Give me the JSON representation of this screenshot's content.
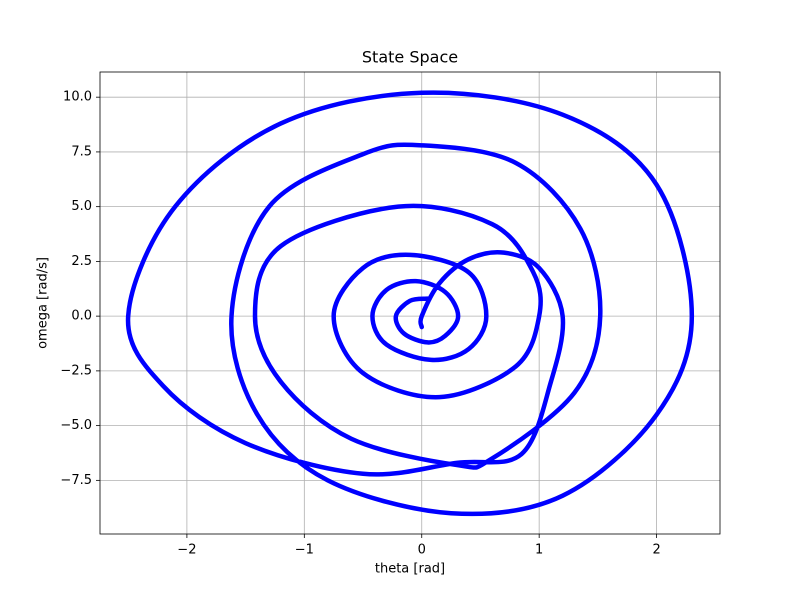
{
  "chart_data": {
    "type": "line",
    "title": "State Space",
    "x_label": "theta [rad]",
    "y_label": "omega [rad/s]",
    "xlim": [
      -2.74,
      2.54
    ],
    "ylim": [
      -9.95,
      11.15
    ],
    "xticks": [
      {
        "value": -2,
        "label": "−2"
      },
      {
        "value": -1,
        "label": "−1"
      },
      0,
      1,
      2
    ],
    "yticks": [
      {
        "value": -7.5,
        "label": "−7.5"
      },
      {
        "value": -5,
        "label": "−5.0"
      },
      {
        "value": -2.5,
        "label": "−2.5"
      },
      {
        "value": 0,
        "label": "0.0"
      },
      2.5,
      {
        "value": 5,
        "label": "5.0"
      },
      7.5,
      {
        "value": 10,
        "label": "10.0"
      }
    ],
    "grid": true,
    "series": [
      {
        "color": "#0000ff",
        "x": [
          0,
          0,
          0.15,
          0.4,
          0.7,
          1.0,
          1.2,
          1.1,
          0.85,
          0.3,
          -0.5,
          -1.5,
          -2.2,
          -2.5,
          -2.1,
          -1.2,
          0,
          1.2,
          2.0,
          2.3,
          2.0,
          1.2,
          0.25,
          -0.8,
          -1.4,
          -1.62,
          -1.3,
          -0.5,
          0,
          0.8,
          1.35,
          1.52,
          1.3,
          0.6,
          0.3,
          -0.6,
          -1.2,
          -1.42,
          -1.2,
          -0.2,
          0.6,
          0.95,
          1.0,
          0.8,
          0.15,
          -0.5,
          -0.75,
          -0.5,
          -0.1,
          0.4,
          0.55,
          0.4,
          0.08,
          -0.3,
          -0.42,
          -0.3,
          -0.05,
          0.2,
          0.31,
          0.2,
          0.05,
          -0.15,
          -0.22,
          -0.1,
          0.05
        ],
        "values": [
          -0.5,
          0,
          1.5,
          2.6,
          2.9,
          2.2,
          0,
          -3,
          -6.3,
          -6.7,
          -7.2,
          -5.8,
          -3.2,
          0,
          5,
          8.8,
          10.2,
          9.2,
          6,
          0,
          -4.5,
          -8.2,
          -9.0,
          -7.5,
          -4.5,
          0,
          5,
          7.4,
          7.8,
          7.0,
          4,
          0,
          -3.5,
          -6.5,
          -6.8,
          -5.6,
          -3,
          0,
          3.2,
          5.0,
          4.2,
          2,
          0,
          -2.3,
          -3.7,
          -2.6,
          0,
          2.2,
          2.8,
          2.0,
          0,
          -1.5,
          -2.0,
          -1.3,
          0,
          1.2,
          1.6,
          1.1,
          0,
          -0.9,
          -1.2,
          -0.8,
          0,
          0.7,
          0.8
        ]
      }
    ]
  }
}
